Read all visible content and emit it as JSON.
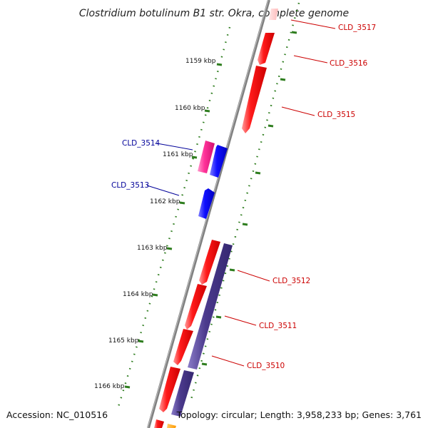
{
  "title": "Clostridium botulinum B1 str. Okra, complete genome",
  "footer": {
    "accession": "Accession: NC_010516",
    "topology": "Topology: circular; Length: 3,958,233 bp; Genes: 3,761"
  },
  "scale_marks": [
    {
      "label": "1159 kbp"
    },
    {
      "label": "1160 kbp"
    },
    {
      "label": "1161 kbp"
    },
    {
      "label": "1162 kbp"
    },
    {
      "label": "1163 kbp"
    },
    {
      "label": "1164 kbp"
    },
    {
      "label": "1165 kbp"
    },
    {
      "label": "1166 kbp"
    }
  ],
  "genes_plus": [
    {
      "label": "CLD_3517",
      "color": "#ffcccc"
    },
    {
      "label": "CLD_3516",
      "color": "#ff0000"
    },
    {
      "label": "CLD_3515",
      "color": "#ff0000"
    },
    {
      "label": "CLD_3512",
      "color": "#ff0000"
    },
    {
      "label": "CLD_3511",
      "color": "#ff0000"
    },
    {
      "label": "CLD_3510",
      "color": "#ff0000"
    }
  ],
  "genes_minus": [
    {
      "label": "CLD_3514",
      "color": "#ff3399"
    },
    {
      "label": "CLD_3513",
      "color": "#0000ff"
    }
  ],
  "colors": {
    "backbone": "#808080",
    "scale": "#2e7d1e",
    "plus_label": "#cc0000",
    "minus_label": "#000099",
    "red_gene": "#ff0000",
    "blue_gene": "#0000ff",
    "purple_gene": "#4b3a8c",
    "orange_gene": "#ff9900"
  }
}
